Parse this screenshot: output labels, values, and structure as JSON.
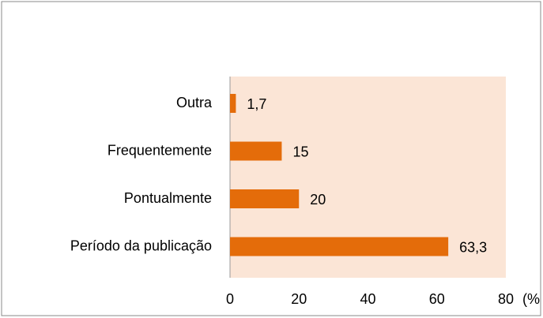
{
  "chart_data": {
    "type": "barh",
    "categories": [
      "Outra",
      "Frequentemente",
      "Pontualmente",
      "Período da publicação"
    ],
    "values": [
      1.7,
      15,
      20,
      63.3
    ],
    "value_labels": [
      "1,7",
      "15",
      "20",
      "63,3"
    ],
    "color": "#e46c0a",
    "xlabel": "(%",
    "xlim": [
      0,
      80
    ],
    "xticks": [
      0,
      20,
      40,
      60,
      80
    ],
    "grid": false
  }
}
